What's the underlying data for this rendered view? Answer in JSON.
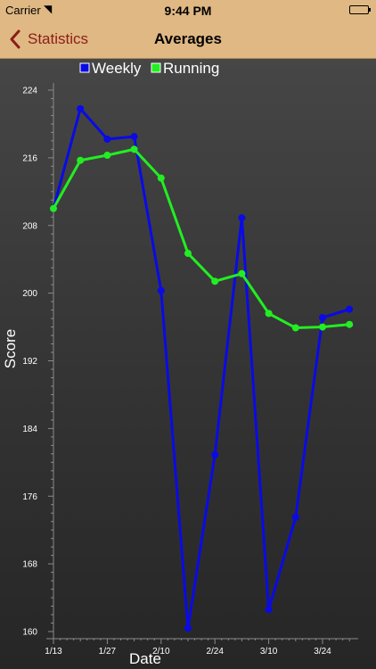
{
  "status_bar": {
    "carrier": "Carrier",
    "time": "9:44 PM"
  },
  "nav": {
    "back_label": "Statistics",
    "title": "Averages"
  },
  "chart_data": {
    "type": "line",
    "xlabel": "Date",
    "ylabel": "Score",
    "ylim": [
      160,
      224
    ],
    "yticks": [
      160,
      168,
      176,
      184,
      192,
      200,
      208,
      216,
      224
    ],
    "xticks": [
      "1/13",
      "1/27",
      "2/10",
      "2/24",
      "3/10",
      "3/24"
    ],
    "x": [
      "1/13",
      "1/20",
      "1/27",
      "2/3",
      "2/10",
      "2/17",
      "2/24",
      "3/3",
      "3/10",
      "3/17",
      "3/24",
      "3/31"
    ],
    "legend_position": "top",
    "grid": false,
    "series": [
      {
        "name": "Weekly",
        "color": "#0a0ae6",
        "values": [
          210,
          221.8,
          218.2,
          218.5,
          200.3,
          160.4,
          180.9,
          208.9,
          162.6,
          173.5,
          197.1,
          198.1
        ]
      },
      {
        "name": "Running",
        "color": "#22ee22",
        "values": [
          210,
          215.7,
          216.3,
          217,
          213.6,
          204.7,
          201.4,
          202.3,
          197.6,
          195.9,
          196,
          196.3
        ]
      }
    ]
  }
}
